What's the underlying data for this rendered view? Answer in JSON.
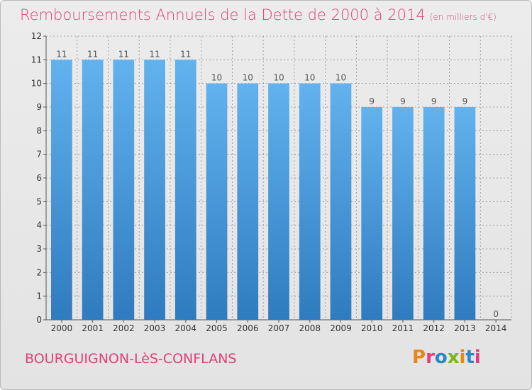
{
  "title": "Remboursements Annuels de la Dette de 2000 à 2014",
  "subtitle": "(en milliers d'€)",
  "commune": "BOURGUIGNON-LèS-CONFLANS",
  "logo": "Proxiti",
  "colors": {
    "title": "#e0417a",
    "bar_top": "#62b2ee",
    "bar_bottom": "#2f7bbf",
    "grid": "#8e8e8e",
    "background": "#e6e6e6"
  },
  "chart_data": {
    "type": "bar",
    "categories": [
      "2000",
      "2001",
      "2002",
      "2003",
      "2004",
      "2005",
      "2006",
      "2007",
      "2008",
      "2009",
      "2010",
      "2011",
      "2012",
      "2013",
      "2014"
    ],
    "values": [
      11,
      11,
      11,
      11,
      11,
      10,
      10,
      10,
      10,
      10,
      9,
      9,
      9,
      9,
      0
    ],
    "data_labels": [
      "11",
      "11",
      "11",
      "11",
      "11",
      "10",
      "10",
      "10",
      "10",
      "10",
      "9",
      "9",
      "9",
      "9",
      "0"
    ],
    "y_ticks": [
      "0",
      "1",
      "2",
      "3",
      "4",
      "5",
      "6",
      "7",
      "8",
      "9",
      "10",
      "11",
      "12"
    ],
    "ylim": [
      0,
      12
    ],
    "grid": true
  }
}
